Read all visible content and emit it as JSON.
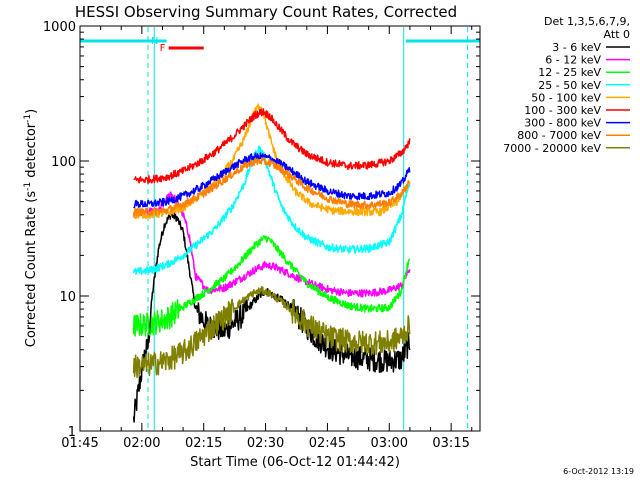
{
  "chart_data": {
    "type": "line",
    "title": "HESSI Observing Summary Count Rates, Corrected",
    "xlabel": "Start Time (06-Oct-12 01:44:42)",
    "ylabel": "Corrected Count Rate (s",
    "ylabel_sup1": "-1",
    "ylabel_mid": " detector",
    "ylabel_sup2": "-1",
    "ylabel_end": ")",
    "y_scale": "log",
    "ylim": [
      1,
      1000
    ],
    "xlim_minutes": [
      105,
      202
    ],
    "x_ticks": [
      {
        "m": 105,
        "label": "01:45"
      },
      {
        "m": 120,
        "label": "02:00"
      },
      {
        "m": 135,
        "label": "02:15"
      },
      {
        "m": 150,
        "label": "02:30"
      },
      {
        "m": 165,
        "label": "02:45"
      },
      {
        "m": 180,
        "label": "03:00"
      },
      {
        "m": 195,
        "label": "03:15"
      }
    ],
    "y_ticks": [
      {
        "v": 1,
        "label": "1"
      },
      {
        "v": 10,
        "label": "10"
      },
      {
        "v": 100,
        "label": "100"
      },
      {
        "v": 1000,
        "label": "1000"
      }
    ],
    "legend": {
      "placement": "right",
      "header": [
        "Det 1,3,5,6,7,9,",
        "Att 0"
      ]
    },
    "timestamp": "6-Oct-2012 13:19",
    "flags": [
      {
        "label": "N",
        "color": "#00e5e5",
        "start": 105,
        "end": 126
      },
      {
        "label": "N",
        "color": "#00e5e5",
        "start": 184,
        "end": 202
      },
      {
        "label": "F",
        "color": "#ff0000",
        "start": 126.5,
        "end": 135
      }
    ],
    "markers": [
      {
        "color": "#00e5e5",
        "style": "solid",
        "x": 105
      },
      {
        "color": "#00e5e5",
        "style": "dashed",
        "x": 121.5
      },
      {
        "color": "#00e5e5",
        "style": "solid",
        "x": 123
      },
      {
        "color": "#00e5e5",
        "style": "solid",
        "x": 183.5
      },
      {
        "color": "#00e5e5",
        "style": "dashed",
        "x": 199
      }
    ],
    "series": [
      {
        "name": "3 - 6 keV",
        "color": "#000000",
        "x": [
          118,
          120.5,
          121.5,
          122.5,
          124,
          125.5,
          127,
          128.5,
          130,
          131.5,
          133,
          136,
          140,
          144,
          147,
          150,
          152,
          155,
          158,
          162,
          166,
          170,
          175,
          180,
          183,
          184,
          185
        ],
        "y": [
          1.2,
          3.5,
          4.3,
          10,
          22,
          34,
          40,
          38,
          30,
          16,
          8,
          6,
          5.5,
          7,
          9,
          11,
          10,
          9,
          7,
          5,
          4,
          3.6,
          3.4,
          3.3,
          3.4,
          4,
          4.6
        ]
      },
      {
        "name": "6 - 12 keV",
        "color": "#ff00ff",
        "x": [
          118,
          122,
          124,
          126,
          127,
          128.5,
          130,
          131.5,
          133,
          136,
          140,
          144,
          148,
          150,
          152,
          155,
          158,
          162,
          166,
          170,
          175,
          180,
          183,
          184,
          185
        ],
        "y": [
          40,
          42,
          42,
          52,
          58,
          50,
          40,
          28,
          14,
          11,
          11.5,
          13.5,
          16,
          17,
          16.5,
          15,
          13.5,
          12,
          11,
          10.5,
          10.5,
          11,
          12,
          14,
          16
        ]
      },
      {
        "name": "12 - 25 keV",
        "color": "#00ff00",
        "x": [
          118,
          122,
          126,
          130,
          135,
          140,
          144,
          147,
          149,
          150,
          151,
          153,
          156,
          160,
          165,
          170,
          175,
          180,
          183,
          184,
          185
        ],
        "y": [
          6,
          6.2,
          6.8,
          8.3,
          10.5,
          13.5,
          18,
          23,
          26,
          27,
          26,
          22,
          17,
          12.5,
          9.8,
          8.5,
          8,
          8.2,
          11,
          15,
          20
        ]
      },
      {
        "name": "25 - 50 keV",
        "color": "#00ffff",
        "x": [
          118,
          122,
          126,
          130,
          134,
          138,
          142,
          145,
          147,
          148.5,
          149.5,
          150.5,
          152,
          154,
          157,
          160,
          165,
          170,
          175,
          180,
          183,
          184,
          185
        ],
        "y": [
          15,
          15.5,
          17,
          20,
          25,
          32,
          46,
          70,
          105,
          125,
          110,
          90,
          65,
          45,
          33,
          27,
          23,
          22,
          22.5,
          25,
          40,
          55,
          70
        ]
      },
      {
        "name": "50 - 100 keV",
        "color": "#ffaa00",
        "x": [
          118,
          122,
          126,
          130,
          134,
          138,
          142,
          145,
          147,
          148.5,
          149.5,
          150.5,
          152,
          154,
          157,
          161,
          166,
          172,
          178,
          182,
          183.5,
          185
        ],
        "y": [
          40,
          40,
          41,
          45,
          55,
          70,
          100,
          150,
          220,
          260,
          230,
          170,
          120,
          85,
          60,
          48,
          43,
          42,
          42,
          50,
          60,
          70
        ]
      },
      {
        "name": "100 - 300 keV",
        "color": "#ff0000",
        "x": [
          118,
          122,
          126,
          130,
          134,
          138,
          142,
          145,
          147.5,
          149.5,
          151,
          153,
          156,
          160,
          165,
          170,
          175,
          180,
          183,
          185
        ],
        "y": [
          72,
          73,
          76,
          84,
          98,
          118,
          150,
          185,
          220,
          232,
          215,
          180,
          140,
          112,
          98,
          92,
          93,
          100,
          115,
          140
        ]
      },
      {
        "name": "300 - 800 keV",
        "color": "#0000ff",
        "x": [
          118,
          122,
          126,
          130,
          134,
          138,
          142,
          145,
          147,
          149,
          151,
          153,
          156,
          160,
          165,
          170,
          175,
          180,
          183,
          185
        ],
        "y": [
          48,
          48,
          50,
          55,
          63,
          75,
          90,
          102,
          107,
          108,
          105,
          98,
          86,
          70,
          60,
          55,
          55,
          58,
          68,
          88
        ]
      },
      {
        "name": "800 - 7000 keV",
        "color": "#ff8000",
        "x": [
          118,
          122,
          126,
          130,
          134,
          138,
          142,
          145,
          147,
          149,
          151,
          153,
          156,
          160,
          165,
          170,
          175,
          180,
          183,
          185
        ],
        "y": [
          42,
          42,
          43,
          48,
          55,
          66,
          80,
          92,
          98,
          100,
          97,
          90,
          78,
          63,
          53,
          48,
          47,
          49,
          57,
          72
        ]
      },
      {
        "name": "7000 - 20000 keV",
        "color": "#808000",
        "x": [
          118,
          122,
          126,
          130,
          133,
          136,
          140,
          144,
          147,
          149,
          151,
          153,
          156,
          160,
          165,
          170,
          175,
          180,
          183,
          185
        ],
        "y": [
          3,
          3.1,
          3.3,
          3.8,
          4.5,
          5.5,
          7,
          9,
          10.5,
          11,
          10.5,
          9.5,
          8,
          6.2,
          5,
          4.6,
          4.5,
          4.5,
          5,
          6
        ]
      }
    ]
  }
}
